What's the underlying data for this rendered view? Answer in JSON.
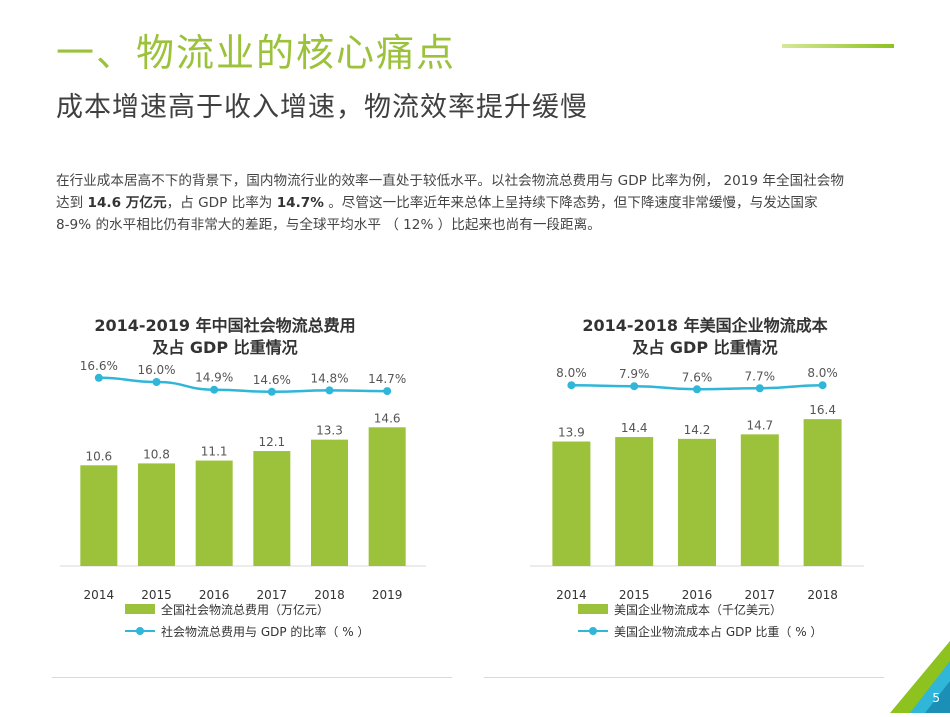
{
  "header": {
    "title": "一、物流业的核心痛点",
    "subtitle": "成本增速高于收入增速，物流效率提升缓慢"
  },
  "body": {
    "line1": "在行业成本居高不下的背景下，国内物流行业的效率一直处于较低水平。以社会物流总费用与 GDP 比率为例， 2019 年全国社会物",
    "line2_a": "达到 ",
    "line2_b": "14.6 万亿元",
    "line2_c": "，占 GDP 比率为 ",
    "line2_d": "14.7%",
    "line2_e": " 。尽管这一比率近年来总体上呈持续下降态势，但下降速度非常缓慢，与发达国家",
    "line3": "8-9% 的水平相比仍有非常大的差距，与全球平均水平 （ 12% ）比起来也尚有一段距离。"
  },
  "chart_data": [
    {
      "type": "bar",
      "title_line1": "2014-2019 年中国社会物流总费用",
      "title_line2": "及占 GDP 比重情况",
      "categories": [
        "2014",
        "2015",
        "2016",
        "2017",
        "2018",
        "2019"
      ],
      "series": [
        {
          "name": "全国社会物流总费用（万亿元）",
          "type": "bar",
          "values": [
            10.6,
            10.8,
            11.1,
            12.1,
            13.3,
            14.6
          ],
          "labels": [
            "10.6",
            "10.8",
            "11.1",
            "12.1",
            "13.3",
            "14.6"
          ]
        },
        {
          "name": "社会物流总费用与 GDP 的比率（ % ）",
          "type": "line",
          "values": [
            16.6,
            16.0,
            14.9,
            14.6,
            14.8,
            14.7
          ],
          "labels": [
            "16.6%",
            "16.0%",
            "14.9%",
            "14.6%",
            "14.8%",
            "14.7%"
          ]
        }
      ],
      "bar_ylim": [
        0,
        20
      ],
      "line_ylim": [
        10,
        18
      ],
      "colors": {
        "bar": "#9bc23a",
        "line": "#2fb6d8"
      }
    },
    {
      "type": "bar",
      "title_line1": "2014-2018 年美国企业物流成本",
      "title_line2": "及占 GDP 比重情况",
      "categories": [
        "2014",
        "2015",
        "2016",
        "2017",
        "2018"
      ],
      "series": [
        {
          "name": "美国企业物流成本（千亿美元）",
          "type": "bar",
          "values": [
            13.9,
            14.4,
            14.2,
            14.7,
            16.4
          ],
          "labels": [
            "13.9",
            "14.4",
            "14.2",
            "14.7",
            "16.4"
          ]
        },
        {
          "name": "美国企业物流成本占 GDP 比重（ % ）",
          "type": "line",
          "values": [
            8.0,
            7.9,
            7.6,
            7.7,
            8.0
          ],
          "labels": [
            "8.0%",
            "7.9%",
            "7.6%",
            "7.7%",
            "8.0%"
          ]
        }
      ],
      "bar_ylim": [
        0,
        22
      ],
      "line_ylim": [
        4,
        9
      ],
      "colors": {
        "bar": "#9bc23a",
        "line": "#2fb6d8"
      }
    }
  ],
  "page_number": "5"
}
